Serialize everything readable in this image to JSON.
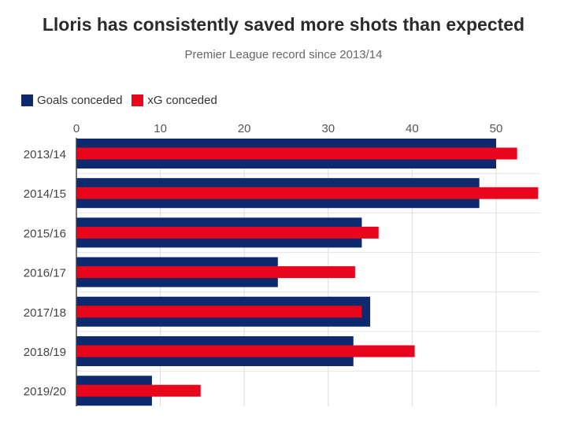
{
  "chart_data": {
    "type": "bar",
    "orientation": "horizontal",
    "title": "Lloris has consistently saved more shots than expected",
    "subtitle": "Premier League record since 2013/14",
    "categories": [
      "2013/14",
      "2014/15",
      "2015/16",
      "2016/17",
      "2017/18",
      "2018/19",
      "2019/20"
    ],
    "series": [
      {
        "name": "Goals conceded",
        "color": "#0d2a6e",
        "values": [
          50,
          48,
          34,
          24,
          35,
          33,
          9
        ]
      },
      {
        "name": "xG conceded",
        "color": "#e8061c",
        "values": [
          52.5,
          55,
          36,
          33.2,
          34,
          40.3,
          14.8
        ]
      }
    ],
    "xticks": [
      0,
      10,
      20,
      30,
      40,
      50
    ],
    "xlim": [
      0,
      55
    ],
    "xaxis_position": "top",
    "grid": true,
    "legend_position": "top-left"
  }
}
